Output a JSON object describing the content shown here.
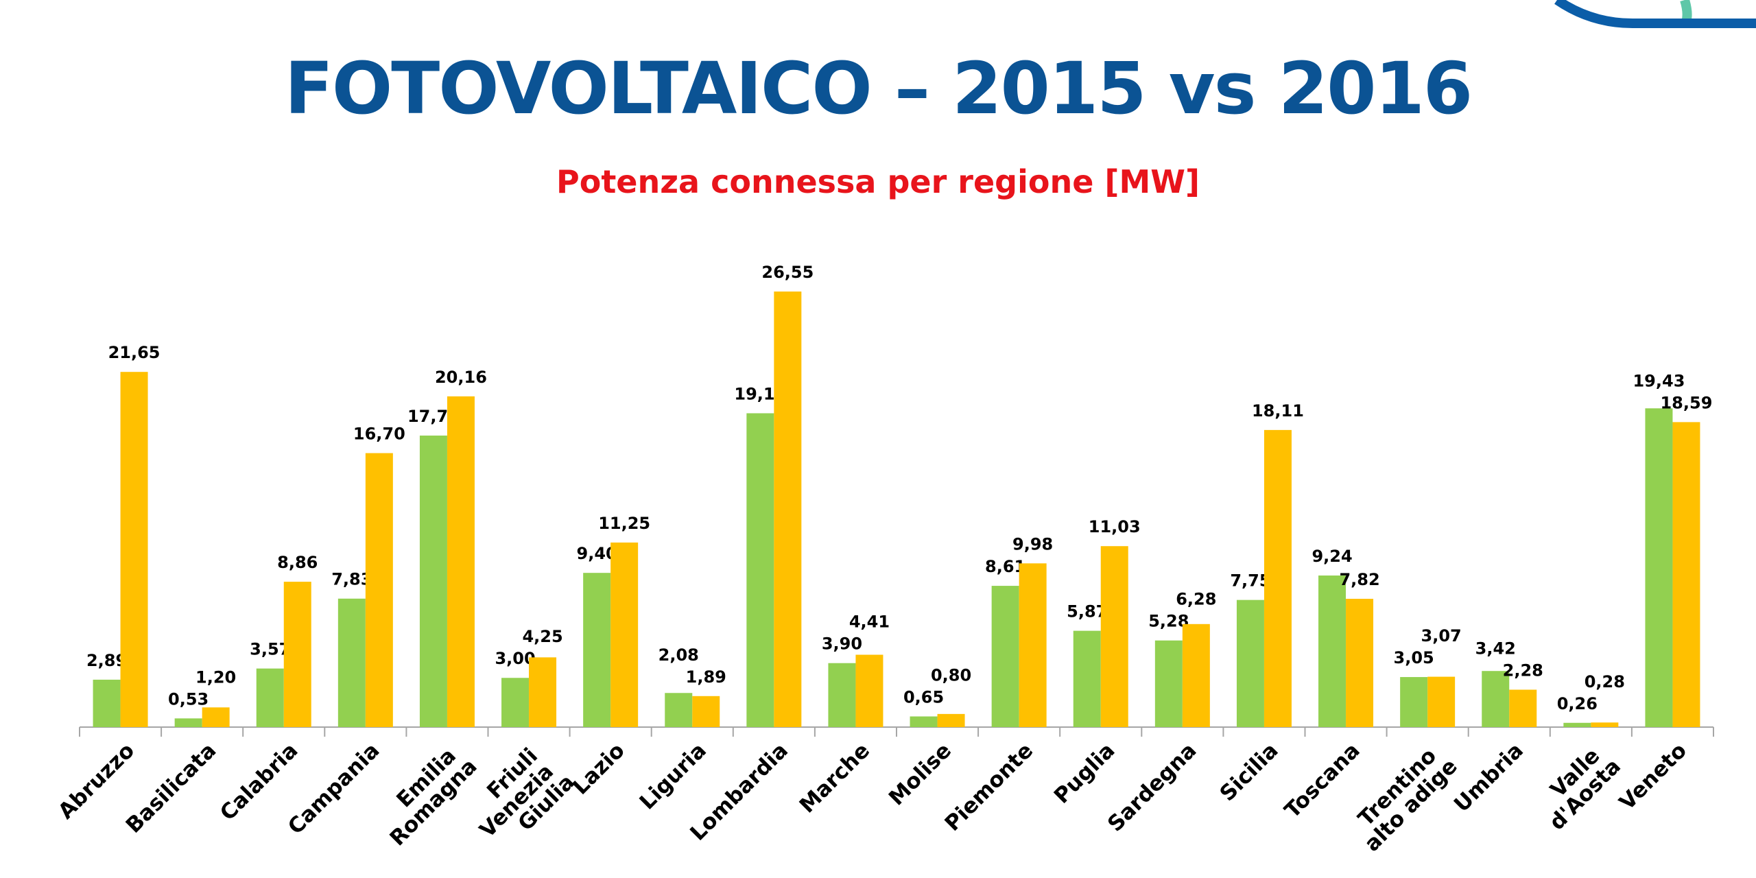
{
  "colors": {
    "title": "#0b5394",
    "subtitle": "#e8141b",
    "series_2015": "#92d050",
    "series_2016": "#ffc000"
  },
  "chart_data": {
    "type": "bar",
    "title": "FOTOVOLTAICO – 2015 vs 2016",
    "subtitle": "Potenza connessa per regione [MW]",
    "xlabel": "",
    "ylabel": "",
    "ylim": [
      0,
      27
    ],
    "grid": false,
    "categories": [
      "Abruzzo",
      "Basilicata",
      "Calabria",
      "Campania",
      "Emilia Romagna",
      "Friuli Venezia Giulia",
      "Lazio",
      "Liguria",
      "Lombardia",
      "Marche",
      "Molise",
      "Piemonte",
      "Puglia",
      "Sardegna",
      "Sicilia",
      "Toscana",
      "Trentino alto adige",
      "Umbria",
      "Valle d'Aosta",
      "Veneto"
    ],
    "series": [
      {
        "name": "2015",
        "color": "#92d050",
        "values": [
          2.89,
          0.53,
          3.57,
          7.83,
          17.77,
          3.0,
          9.4,
          2.08,
          19.13,
          3.9,
          0.65,
          8.61,
          5.87,
          5.28,
          7.75,
          9.24,
          3.05,
          3.42,
          0.26,
          19.43
        ],
        "labels": [
          "2,89",
          "0,53",
          "3,57",
          "7,83",
          "17,77",
          "3,00",
          "9,40",
          "2,08",
          "19,13",
          "3,90",
          "0,65",
          "8,61",
          "5,87",
          "5,28",
          "7,75",
          "9,24",
          "3,05",
          "3,42",
          "0,26",
          "19,43"
        ]
      },
      {
        "name": "2016",
        "color": "#ffc000",
        "values": [
          21.65,
          1.2,
          8.86,
          16.7,
          20.16,
          4.25,
          11.25,
          1.89,
          26.55,
          4.41,
          0.8,
          9.98,
          11.03,
          6.28,
          18.11,
          7.82,
          3.07,
          2.28,
          0.28,
          18.59
        ],
        "labels": [
          "21,65",
          "1,20",
          "8,86",
          "16,70",
          "20,16",
          "4,25",
          "11,25",
          "1,89",
          "26,55",
          "4,41",
          "0,80",
          "9,98",
          "11,03",
          "6,28",
          "18,11",
          "7,82",
          "3,07",
          "2,28",
          "0,28",
          "18,59"
        ]
      }
    ]
  }
}
